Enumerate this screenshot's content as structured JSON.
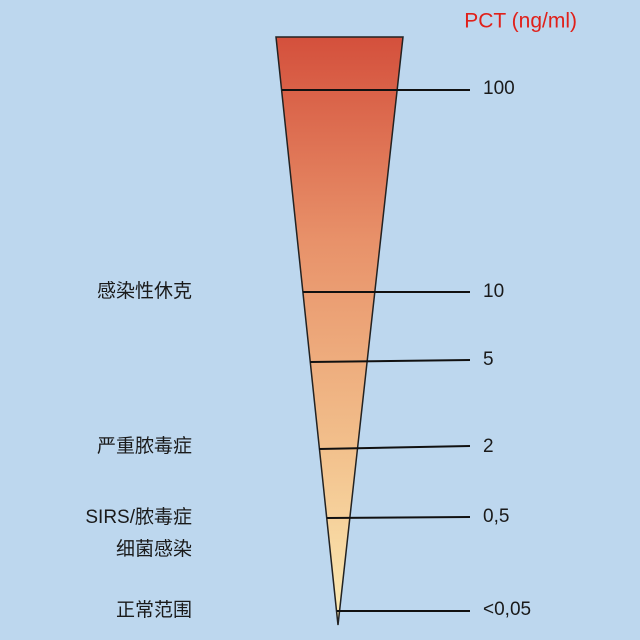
{
  "title": "PCT (ng/ml)",
  "levels": [
    {
      "label": "100"
    },
    {
      "label": "10"
    },
    {
      "label": "5"
    },
    {
      "label": "2"
    },
    {
      "label": "0,5"
    },
    {
      "label": "<0,05"
    }
  ],
  "conditions": [
    {
      "label": "感染性休克"
    },
    {
      "label": "严重脓毒症"
    },
    {
      "label": "SIRS/脓毒症"
    },
    {
      "label": "细菌感染"
    },
    {
      "label": "正常范围"
    }
  ]
}
